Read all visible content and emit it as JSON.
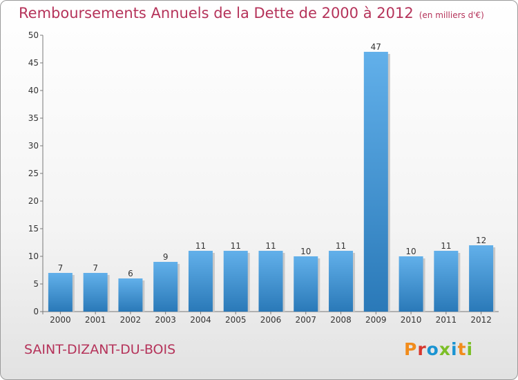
{
  "page": {
    "title": "Remboursements Annuels de la Dette de 2000 à 2012",
    "unit": "(en milliers d'€)",
    "place": "SAINT-DIZANT-DU-BOIS",
    "logo": {
      "letters": [
        "P",
        "r",
        "o",
        "x",
        "i",
        "t",
        "i"
      ]
    }
  },
  "colors": {
    "title": "#b5335a",
    "bar_top": "#62b0ea",
    "bar_bottom": "#2a79b8",
    "logo_letters": [
      "#f18c1c",
      "#d7382f",
      "#1a94d2",
      "#7cbf27",
      "#1a94d2",
      "#f18c1c",
      "#7cbf27"
    ]
  },
  "chart_data": {
    "type": "bar",
    "title": "Remboursements Annuels de la Dette de 2000 à 2012",
    "subtitle": "(en milliers d'€)",
    "xlabel": "",
    "ylabel": "",
    "categories": [
      "2000",
      "2001",
      "2002",
      "2003",
      "2004",
      "2005",
      "2006",
      "2007",
      "2008",
      "2009",
      "2010",
      "2011",
      "2012"
    ],
    "values": [
      7,
      7,
      6,
      9,
      11,
      11,
      11,
      10,
      11,
      47,
      10,
      11,
      12
    ],
    "ylim": [
      0,
      50
    ],
    "yticks": [
      0,
      5,
      10,
      15,
      20,
      25,
      30,
      35,
      40,
      45,
      50
    ],
    "grid": false,
    "legend": "none"
  }
}
